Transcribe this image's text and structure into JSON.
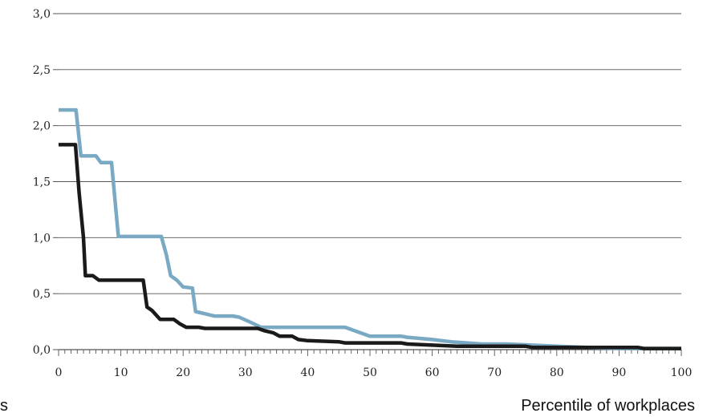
{
  "chart_data": {
    "type": "line",
    "title": "",
    "xlabel": "Percentile of workplaces",
    "ylabel": "",
    "clipped_left_label": "s",
    "xlim": [
      0,
      100
    ],
    "ylim": [
      0,
      3.0
    ],
    "x_ticks": [
      0,
      10,
      20,
      30,
      40,
      50,
      60,
      70,
      80,
      90,
      100
    ],
    "x_tick_labels": [
      "0",
      "10",
      "20",
      "30",
      "40",
      "50",
      "60",
      "70",
      "80",
      "90",
      "100"
    ],
    "y_ticks": [
      0,
      0.5,
      1.0,
      1.5,
      2.0,
      2.5,
      3.0
    ],
    "y_tick_labels": [
      "0,0",
      "0,5",
      "1,0",
      "1,5",
      "2,0",
      "2,5",
      "3,0"
    ],
    "grid": "horizontal",
    "legend": "none",
    "series": [
      {
        "color": "#7aa9c3",
        "points": [
          [
            0,
            2.14
          ],
          [
            2.8,
            2.14
          ],
          [
            3.6,
            1.73
          ],
          [
            6,
            1.73
          ],
          [
            6.8,
            1.67
          ],
          [
            8.5,
            1.67
          ],
          [
            9.6,
            1.01
          ],
          [
            16.5,
            1.01
          ],
          [
            17.3,
            0.85
          ],
          [
            18,
            0.66
          ],
          [
            19,
            0.62
          ],
          [
            20,
            0.56
          ],
          [
            21.5,
            0.55
          ],
          [
            22,
            0.34
          ],
          [
            25,
            0.3
          ],
          [
            28,
            0.3
          ],
          [
            29,
            0.29
          ],
          [
            31,
            0.24
          ],
          [
            32.5,
            0.2
          ],
          [
            46,
            0.2
          ],
          [
            47,
            0.18
          ],
          [
            48.5,
            0.15
          ],
          [
            50,
            0.12
          ],
          [
            55,
            0.12
          ],
          [
            56,
            0.11
          ],
          [
            60,
            0.09
          ],
          [
            63,
            0.07
          ],
          [
            68,
            0.05
          ],
          [
            72,
            0.05
          ],
          [
            80,
            0.03
          ],
          [
            85,
            0.02
          ],
          [
            90,
            0.01
          ],
          [
            95,
            0.01
          ],
          [
            100,
            0.01
          ]
        ]
      },
      {
        "color": "#1a1a1a",
        "points": [
          [
            0,
            1.83
          ],
          [
            2.7,
            1.83
          ],
          [
            3.3,
            1.4
          ],
          [
            4,
            1.0
          ],
          [
            4.3,
            0.66
          ],
          [
            5.5,
            0.66
          ],
          [
            6.5,
            0.62
          ],
          [
            13.6,
            0.62
          ],
          [
            14.2,
            0.38
          ],
          [
            15,
            0.35
          ],
          [
            16.3,
            0.27
          ],
          [
            18.5,
            0.27
          ],
          [
            19.5,
            0.23
          ],
          [
            20.5,
            0.2
          ],
          [
            22.5,
            0.2
          ],
          [
            23.5,
            0.19
          ],
          [
            32,
            0.19
          ],
          [
            33,
            0.17
          ],
          [
            34.5,
            0.15
          ],
          [
            35.5,
            0.12
          ],
          [
            37.5,
            0.12
          ],
          [
            38.5,
            0.09
          ],
          [
            40,
            0.08
          ],
          [
            45,
            0.07
          ],
          [
            46,
            0.06
          ],
          [
            55,
            0.06
          ],
          [
            56,
            0.05
          ],
          [
            60,
            0.04
          ],
          [
            64,
            0.03
          ],
          [
            75,
            0.03
          ],
          [
            76,
            0.02
          ],
          [
            93,
            0.02
          ],
          [
            94,
            0.01
          ],
          [
            100,
            0.01
          ]
        ]
      }
    ]
  }
}
